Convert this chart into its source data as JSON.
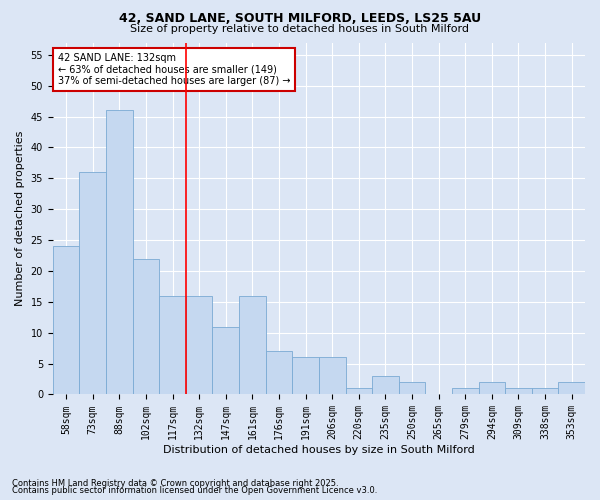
{
  "title1": "42, SAND LANE, SOUTH MILFORD, LEEDS, LS25 5AU",
  "title2": "Size of property relative to detached houses in South Milford",
  "xlabel": "Distribution of detached houses by size in South Milford",
  "ylabel": "Number of detached properties",
  "categories": [
    "58sqm",
    "73sqm",
    "88sqm",
    "102sqm",
    "117sqm",
    "132sqm",
    "147sqm",
    "161sqm",
    "176sqm",
    "191sqm",
    "206sqm",
    "220sqm",
    "235sqm",
    "250sqm",
    "265sqm",
    "279sqm",
    "294sqm",
    "309sqm",
    "338sqm",
    "353sqm"
  ],
  "values": [
    24,
    36,
    46,
    22,
    16,
    16,
    11,
    16,
    7,
    6,
    6,
    1,
    3,
    2,
    0,
    1,
    2,
    1,
    1,
    2
  ],
  "bar_color": "#c5d8f0",
  "bar_edge_color": "#7aaad4",
  "red_line_x": 4.5,
  "ylim_max": 57,
  "yticks": [
    0,
    5,
    10,
    15,
    20,
    25,
    30,
    35,
    40,
    45,
    50,
    55
  ],
  "annotation_text": "42 SAND LANE: 132sqm\n← 63% of detached houses are smaller (149)\n37% of semi-detached houses are larger (87) →",
  "annotation_box_facecolor": "#ffffff",
  "annotation_box_edgecolor": "#cc0000",
  "footer1": "Contains HM Land Registry data © Crown copyright and database right 2025.",
  "footer2": "Contains public sector information licensed under the Open Government Licence v3.0.",
  "background_color": "#dce6f5",
  "grid_color": "#ffffff",
  "title1_fontsize": 9,
  "title2_fontsize": 8,
  "xlabel_fontsize": 8,
  "ylabel_fontsize": 8,
  "tick_fontsize": 7,
  "annotation_fontsize": 7,
  "footer_fontsize": 6
}
